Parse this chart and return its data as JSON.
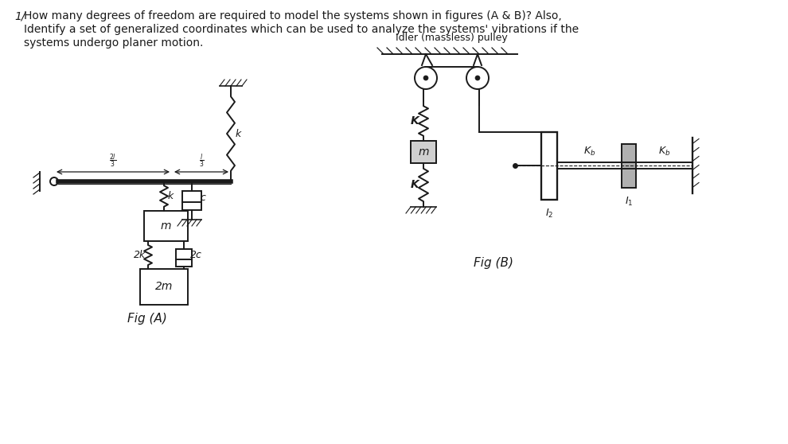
{
  "bg_color": "#f5f5f0",
  "text_color": "#1a1a1a",
  "title_lines": [
    "How many degrees of freedom are required to model the systems shown in figures (A & B)? Also,",
    "Identify a set of generalized coordinates which can be used to analyze the systems' vibrations if the",
    "systems undergo planer motion."
  ],
  "fig_a_label": "Fig (A)",
  "fig_b_label": "Fig (B)",
  "idler_label": "Idler (massless) pulley",
  "spring_color": "#1a1a1a",
  "box_color": "#1a1a1a",
  "ground_color": "#1a1a1a"
}
